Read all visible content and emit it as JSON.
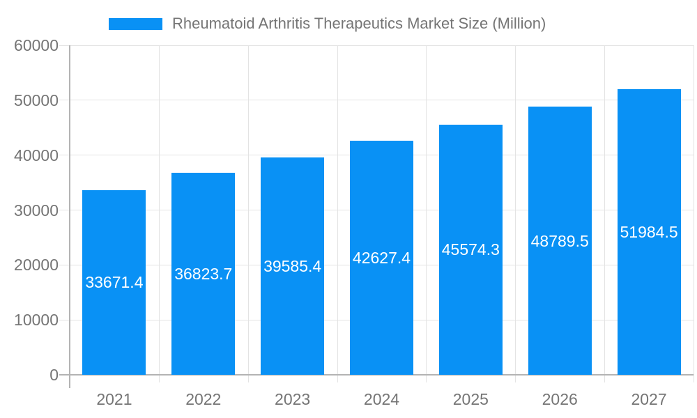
{
  "chart_data": {
    "type": "bar",
    "title": "Rheumatoid Arthritis Therapeutics Market Size (Million)",
    "categories": [
      "2021",
      "2022",
      "2023",
      "2024",
      "2025",
      "2026",
      "2027"
    ],
    "values": [
      33671.4,
      36823.7,
      39585.4,
      42627.4,
      45574.3,
      48789.5,
      51984.5
    ],
    "value_labels": [
      "33671.4",
      "36823.7",
      "39585.4",
      "42627.4",
      "45574.3",
      "48789.5",
      "51984.5"
    ],
    "xlabel": "",
    "ylabel": "",
    "ylim": [
      0,
      60000
    ],
    "ytick_step": 10000,
    "ytick_labels": [
      "0",
      "10000",
      "20000",
      "30000",
      "40000",
      "50000",
      "60000"
    ],
    "legend_position": "top",
    "grid": true,
    "colors": {
      "bar": "#0991F5",
      "value_label": "#FFFFFF",
      "axis_text": "#757575",
      "gridline": "#E3E3E3",
      "axis_line": "#B3B3B3",
      "background": "#FFFFFF"
    }
  }
}
